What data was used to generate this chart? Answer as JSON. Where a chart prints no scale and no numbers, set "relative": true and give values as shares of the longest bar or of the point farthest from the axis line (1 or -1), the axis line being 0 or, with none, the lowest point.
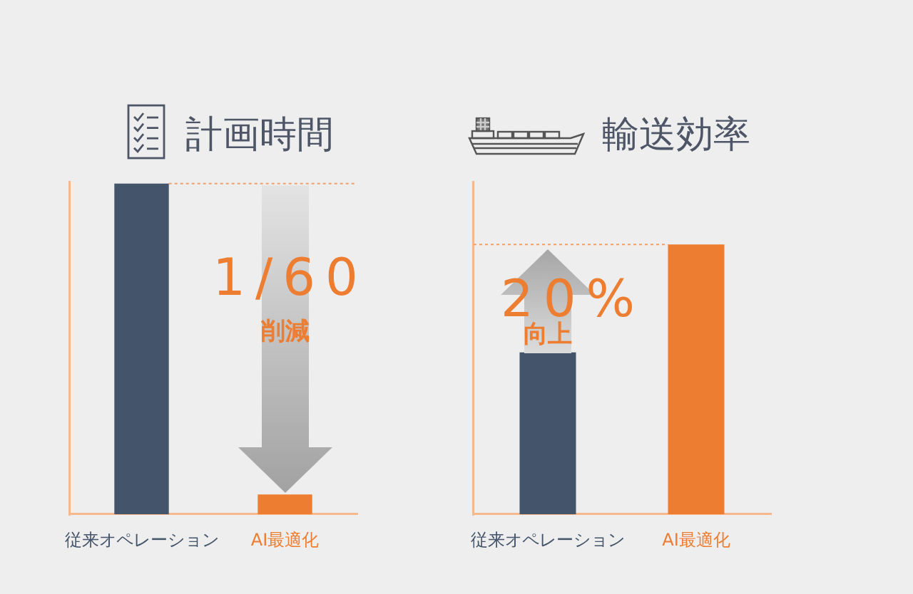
{
  "chart_data": [
    {
      "type": "bar",
      "title": "計画時間",
      "categories": [
        "従来オペレーション",
        "AI最適化"
      ],
      "values": [
        1,
        0.06
      ],
      "colors": [
        "#44546a",
        "#ed7d31"
      ],
      "relative": true,
      "ref_lines": [
        {
          "axis": "y",
          "value": 1,
          "color": "#f0a06a",
          "line_style": "dotted"
        }
      ],
      "annotations": [
        "1/60",
        "削減"
      ]
    },
    {
      "type": "bar",
      "title": "輸送効率",
      "categories": [
        "従来オペレーション",
        "AI最適化"
      ],
      "values": [
        0.6,
        1
      ],
      "colors": [
        "#44546a",
        "#ed7d31"
      ],
      "relative": true,
      "ref_lines": [
        {
          "axis": "y",
          "value": 1,
          "color": "#f0a06a",
          "line_style": "dotted"
        }
      ],
      "annotations": [
        "20%",
        "向上"
      ]
    }
  ]
}
